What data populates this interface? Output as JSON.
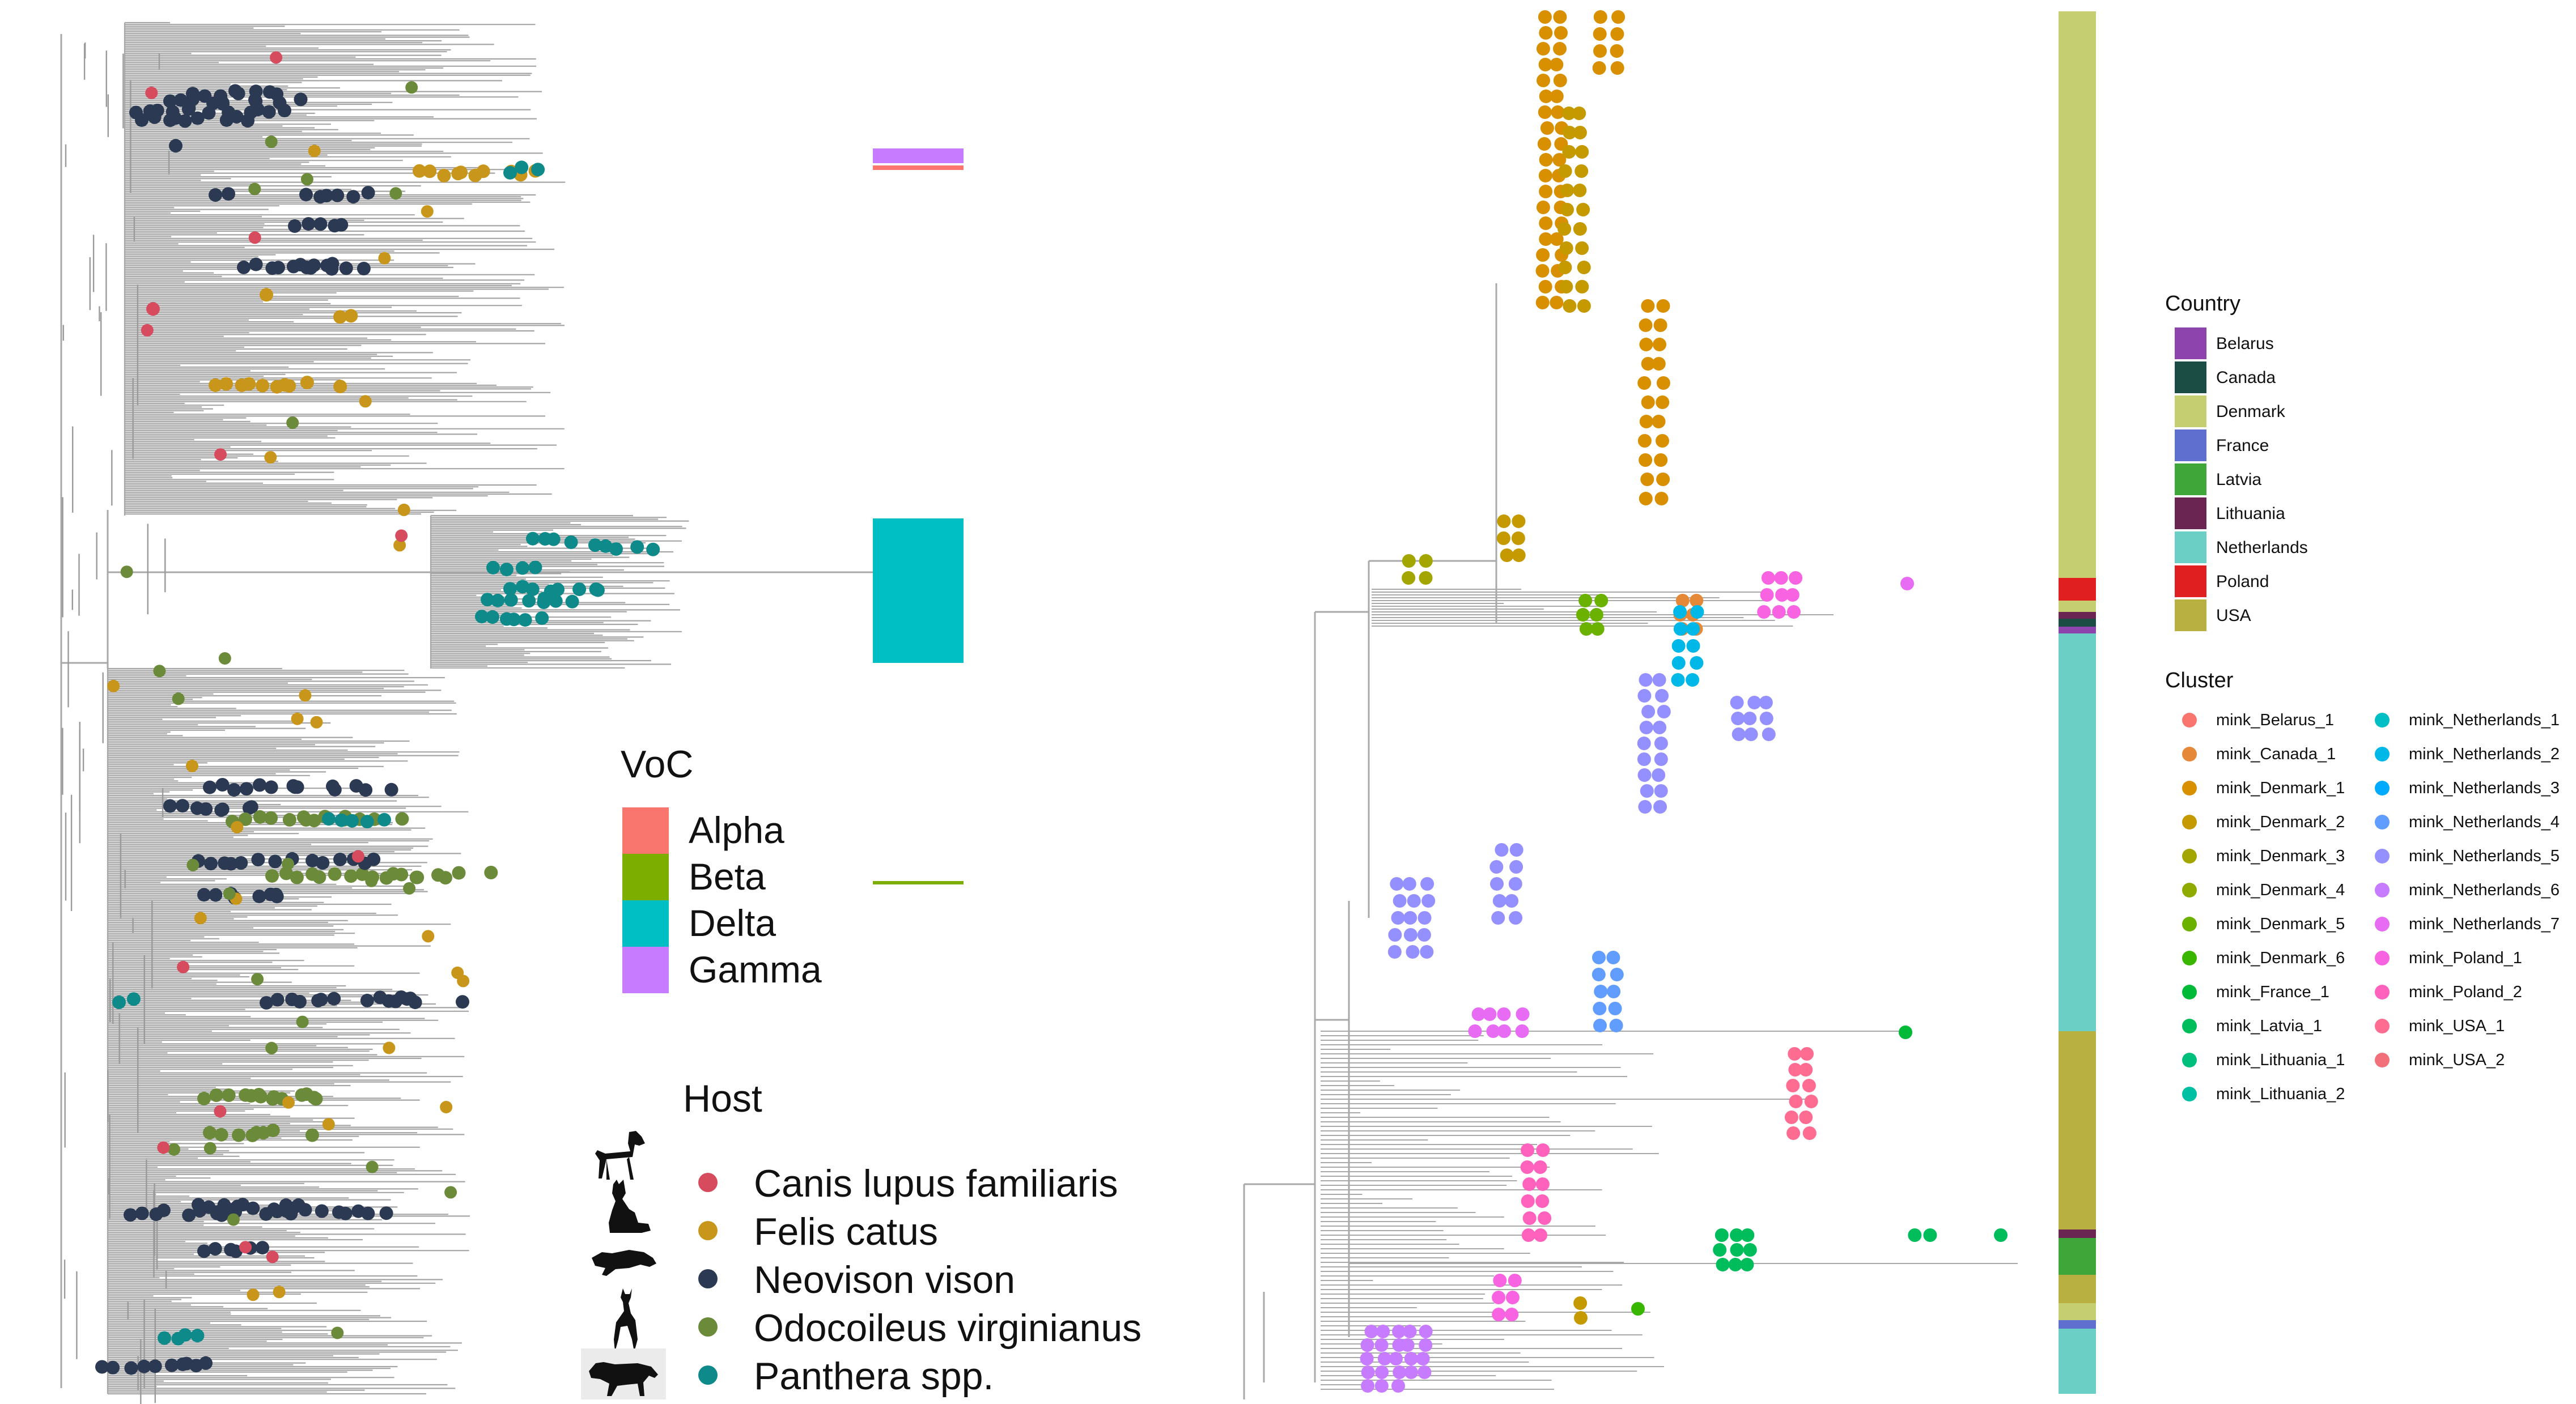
{
  "voc_legend": {
    "title": "VoC",
    "items": [
      {
        "label": "Alpha",
        "color": "#F8766D"
      },
      {
        "label": "Beta",
        "color": "#7CAE00"
      },
      {
        "label": "Delta",
        "color": "#00BFC4"
      },
      {
        "label": "Gamma",
        "color": "#C77CFF"
      }
    ]
  },
  "host_legend": {
    "title": "Host",
    "items": [
      {
        "label": "Canis lupus familiaris",
        "color": "#D64B5E",
        "icon": "dog-silhouette-icon"
      },
      {
        "label": "Felis catus",
        "color": "#C8961A",
        "icon": "cat-silhouette-icon"
      },
      {
        "label": "Neovison vison",
        "color": "#2B3A52",
        "icon": "mink-silhouette-icon"
      },
      {
        "label": "Odocoileus virginianus",
        "color": "#6B8A3A",
        "icon": "deer-silhouette-icon"
      },
      {
        "label": "Panthera spp.",
        "color": "#0F8A8A",
        "icon": "big-cat-silhouette-icon"
      }
    ]
  },
  "country_legend": {
    "title": "Country",
    "items": [
      {
        "label": "Belarus",
        "color": "#8E44AD"
      },
      {
        "label": "Canada",
        "color": "#1B4D45"
      },
      {
        "label": "Denmark",
        "color": "#C5CE70"
      },
      {
        "label": "France",
        "color": "#5F6FCF"
      },
      {
        "label": "Latvia",
        "color": "#3FA63A"
      },
      {
        "label": "Lithuania",
        "color": "#6B2552"
      },
      {
        "label": "Netherlands",
        "color": "#6CCFC5"
      },
      {
        "label": "Poland",
        "color": "#E02020"
      },
      {
        "label": "USA",
        "color": "#B8B040"
      }
    ]
  },
  "cluster_legend": {
    "title": "Cluster",
    "items": [
      {
        "label": "mink_Belarus_1",
        "color": "#F8766D"
      },
      {
        "label": "mink_Canada_1",
        "color": "#E58838"
      },
      {
        "label": "mink_Denmark_1",
        "color": "#D89000"
      },
      {
        "label": "mink_Denmark_2",
        "color": "#C49A00"
      },
      {
        "label": "mink_Denmark_3",
        "color": "#A3A500"
      },
      {
        "label": "mink_Denmark_4",
        "color": "#8FAA00"
      },
      {
        "label": "mink_Denmark_5",
        "color": "#6BB100"
      },
      {
        "label": "mink_Denmark_6",
        "color": "#39B600"
      },
      {
        "label": "mink_France_1",
        "color": "#00BA38"
      },
      {
        "label": "mink_Latvia_1",
        "color": "#00BD5C"
      },
      {
        "label": "mink_Lithuania_1",
        "color": "#00BF7D"
      },
      {
        "label": "mink_Lithuania_2",
        "color": "#00C0A3"
      },
      {
        "label": "mink_Netherlands_1",
        "color": "#00BFC4"
      },
      {
        "label": "mink_Netherlands_2",
        "color": "#00B8E7"
      },
      {
        "label": "mink_Netherlands_3",
        "color": "#00ABFD"
      },
      {
        "label": "mink_Netherlands_4",
        "color": "#619CFF"
      },
      {
        "label": "mink_Netherlands_5",
        "color": "#9590FF"
      },
      {
        "label": "mink_Netherlands_6",
        "color": "#C77CFF"
      },
      {
        "label": "mink_Netherlands_7",
        "color": "#E76BF3"
      },
      {
        "label": "mink_Poland_1",
        "color": "#F763E0"
      },
      {
        "label": "mink_Poland_2",
        "color": "#FF62BC"
      },
      {
        "label": "mink_USA_1",
        "color": "#FF6C91"
      },
      {
        "label": "mink_USA_2",
        "color": "#F2707A"
      }
    ]
  },
  "colors": {
    "branch": "#A8A8A8",
    "branch_thin": "#B5B5B5"
  }
}
